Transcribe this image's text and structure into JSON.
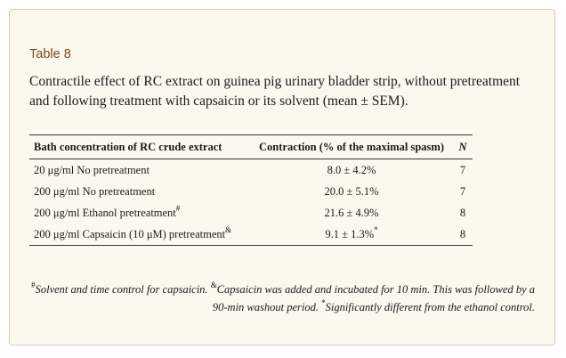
{
  "table": {
    "label": "Table 8",
    "caption": "Contractile effect of RC extract on guinea pig urinary bladder strip, without pretreatment and following treatment with capsaicin or its solvent (mean ± SEM).",
    "headers": [
      "Bath concentration of RC crude extract",
      "Contraction (% of the maximal spasm)",
      "N"
    ],
    "rows": [
      {
        "condition": "20 μg/ml No pretreatment",
        "condition_mark": "",
        "contraction": "8.0 ± 4.2%",
        "contraction_mark": "",
        "n": "7"
      },
      {
        "condition": "200 μg/ml No pretreatment",
        "condition_mark": "",
        "contraction": "20.0 ± 5.1%",
        "contraction_mark": "",
        "n": "7"
      },
      {
        "condition": "200 μg/ml Ethanol pretreatment",
        "condition_mark": "#",
        "contraction": "21.6 ± 4.9%",
        "contraction_mark": "",
        "n": "8"
      },
      {
        "condition": "200 μg/ml Capsaicin (10 μM) pretreatment",
        "condition_mark": "&",
        "contraction": "9.1 ± 1.3%",
        "contraction_mark": "*",
        "n": "8"
      }
    ]
  },
  "footnotes": [
    {
      "mark": "#",
      "text": "Solvent and time control for capsaicin. "
    },
    {
      "mark": "&",
      "text": "Capsaicin was added and incubated for 10 min. This was followed by a 90-min washout period. "
    },
    {
      "mark": "*",
      "text": "Significantly different from the ethanol control."
    }
  ],
  "colors": {
    "card_background": "#fbf8ee",
    "card_border": "#d9c8c4",
    "label": "#7a4a1e"
  }
}
